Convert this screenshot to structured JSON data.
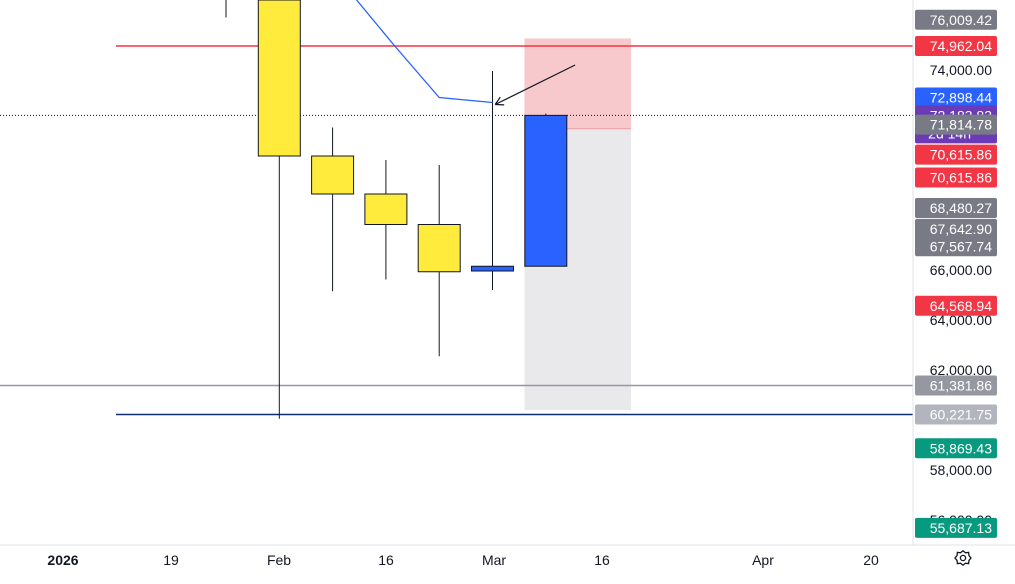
{
  "chart_data": {
    "type": "candlestick",
    "y_range": [
      54800,
      76800
    ],
    "x_labels": [
      "2026",
      "19",
      "Feb",
      "16",
      "Mar",
      "16",
      "Apr",
      "20"
    ],
    "y_ticks": [
      {
        "value": 74000,
        "label": "74,000.00"
      },
      {
        "value": 66000,
        "label": "66,000.00"
      },
      {
        "value": 64000,
        "label": "64,000.00"
      },
      {
        "value": 62000,
        "label": "62,000.00"
      },
      {
        "value": 58000,
        "label": "58,000.00"
      },
      {
        "value": 56000,
        "label": "56,000.00"
      }
    ],
    "candles": [
      {
        "slot": 0,
        "open": 76800,
        "high": 76800,
        "low": 76100,
        "close": 76800,
        "color": "#ffeb3b",
        "wick_only": true
      },
      {
        "slot": 1,
        "open": 76800,
        "high": 76800,
        "low": 60050,
        "close": 70560,
        "color": "#ffeb3b"
      },
      {
        "slot": 2,
        "open": 70560,
        "high": 71700,
        "low": 65150,
        "close": 69040,
        "color": "#ffeb3b"
      },
      {
        "slot": 3,
        "open": 69040,
        "high": 70400,
        "low": 65620,
        "close": 67820,
        "color": "#ffeb3b"
      },
      {
        "slot": 4,
        "open": 67820,
        "high": 70200,
        "low": 62550,
        "close": 65930,
        "color": "#ffeb3b"
      },
      {
        "slot": 5,
        "open": 65960,
        "high": 73960,
        "low": 65200,
        "close": 66150,
        "color": "#2962ff"
      },
      {
        "slot": 6,
        "open": 66150,
        "high": 72260,
        "low": 66150,
        "close": 72183.83,
        "color": "#2962ff"
      }
    ],
    "ma_line": {
      "color": "#2962ff",
      "points": [
        [
          2.45,
          76800
        ],
        [
          3.15,
          75000
        ],
        [
          4.0,
          72900
        ],
        [
          5.0,
          72700
        ]
      ]
    },
    "hlines": [
      {
        "value": 74962.04,
        "color": "#f23645"
      },
      {
        "value": 72183.83,
        "color": "#131722",
        "dotted": true
      },
      {
        "value": 61381.86,
        "color": "#9598a1"
      },
      {
        "value": 60221.75,
        "color": "#0d2e73"
      }
    ],
    "position_box": {
      "slot_start": 5.6,
      "slot_end": 7.6,
      "target": 75260,
      "entry": 71650,
      "stop": 60400,
      "profit_color": "#f7c8cc",
      "loss_color": "#e9e9ec"
    },
    "arrow": {
      "from": [
        6.55,
        74200
      ],
      "to": [
        5.05,
        72620
      ]
    },
    "price_labels": [
      {
        "label": "76,009.42",
        "value": 76009.42,
        "color": "#787b86"
      },
      {
        "label": "74,962.04",
        "value": 74962.04,
        "color": "#f23645"
      },
      {
        "label": "72,898.44",
        "value": 72898.44,
        "color": "#2962ff"
      },
      {
        "label": "72,183.83",
        "sublabel": "2d 14h",
        "value": 72183.83,
        "color": "#6a3bb4"
      },
      {
        "label": "71,814.78",
        "value": 71814.78,
        "color": "#787b86"
      },
      {
        "label": "70,615.86",
        "value": 70615.86,
        "color": "#f23645"
      },
      {
        "label": "70,615.86",
        "value": 69700,
        "color": "#f23645"
      },
      {
        "label": "68,480.27",
        "value": 68480.27,
        "color": "#787b86"
      },
      {
        "label": "67,642.90",
        "value": 67642.9,
        "color": "#787b86"
      },
      {
        "label": "67,567.74",
        "value": 66950,
        "color": "#787b86"
      },
      {
        "label": "64,568.94",
        "value": 64568.94,
        "color": "#f23645"
      },
      {
        "label": "61,381.86",
        "value": 61381.86,
        "color": "#9598a1"
      },
      {
        "label": "60,221.75",
        "value": 60221.75,
        "color": "#b2b5be"
      },
      {
        "label": "58,869.43",
        "value": 58869.43,
        "color": "#089981"
      },
      {
        "label": "55,687.13",
        "value": 55687.13,
        "color": "#089981"
      }
    ]
  },
  "ui": {
    "settings_icon": "gear-icon"
  }
}
